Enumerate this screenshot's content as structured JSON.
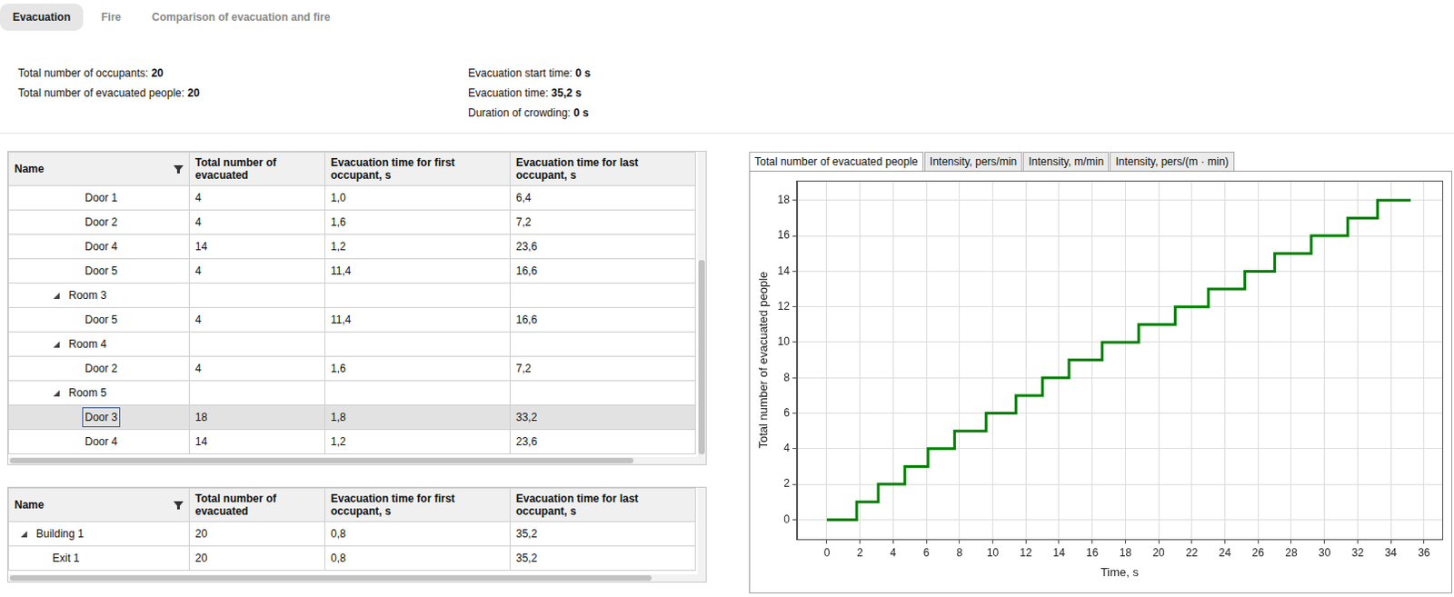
{
  "tabs": [
    "Evacuation",
    "Fire",
    "Comparison of evacuation and fire"
  ],
  "active_tab": "Evacuation",
  "summary_left": [
    {
      "label": "Total number of occupants:",
      "value": "20"
    },
    {
      "label": "Total number of evacuated people:",
      "value": "20"
    }
  ],
  "summary_right": [
    {
      "label": "Evacuation start time:",
      "value": "0 s"
    },
    {
      "label": "Evacuation time:",
      "value": "35,2 s"
    },
    {
      "label": "Duration of crowding:",
      "value": "0 s"
    }
  ],
  "rooms_table": {
    "columns": [
      "Name",
      "Total number of evacuated",
      "Evacuation time for first occupant, s",
      "Evacuation time for last occupant, s"
    ],
    "groups": [
      {
        "rows": [
          {
            "name": "Door 1",
            "values": [
              "4",
              "1,0",
              "6,4"
            ]
          },
          {
            "name": "Door 2",
            "values": [
              "4",
              "1,6",
              "7,2"
            ]
          },
          {
            "name": "Door 4",
            "values": [
              "14",
              "1,2",
              "23,6"
            ]
          },
          {
            "name": "Door 5",
            "values": [
              "4",
              "11,4",
              "16,6"
            ]
          }
        ]
      },
      {
        "name": "Room 3",
        "rows": [
          {
            "name": "Door 5",
            "values": [
              "4",
              "11,4",
              "16,6"
            ]
          }
        ]
      },
      {
        "name": "Room 4",
        "rows": [
          {
            "name": "Door 2",
            "values": [
              "4",
              "1,6",
              "7,2"
            ]
          }
        ]
      },
      {
        "name": "Room 5",
        "rows": [
          {
            "name": "Door 3",
            "values": [
              "18",
              "1,8",
              "33,2"
            ],
            "selected": true
          },
          {
            "name": "Door 4",
            "values": [
              "14",
              "1,2",
              "23,6"
            ]
          }
        ]
      }
    ]
  },
  "exits_table": {
    "columns": [
      "Name",
      "Total number of evacuated",
      "Evacuation time for first occupant, s",
      "Evacuation time for last occupant, s"
    ],
    "groups": [
      {
        "name": "Building 1",
        "values": [
          "20",
          "0,8",
          "35,2"
        ],
        "rows": [
          {
            "name": "Exit 1",
            "values": [
              "20",
              "0,8",
              "35,2"
            ]
          }
        ]
      }
    ]
  },
  "chart_tabs": [
    "Total number of evacuated people",
    "Intensity, pers/min",
    "Intensity, m/min",
    "Intensity, pers/(m · min)"
  ],
  "active_chart_tab": "Total number of evacuated people",
  "chart_data": {
    "type": "line",
    "x_label": "Time, s",
    "y_label": "Total number of evacuated people",
    "x": [
      0,
      1.8,
      3.1,
      4.7,
      6.1,
      7.7,
      9.6,
      11.4,
      13.0,
      14.6,
      16.6,
      18.8,
      21.0,
      23.0,
      25.2,
      27.0,
      29.2,
      31.4,
      33.2,
      35.2
    ],
    "values": [
      0,
      1,
      2,
      3,
      4,
      5,
      6,
      7,
      8,
      9,
      10,
      11,
      12,
      13,
      14,
      15,
      16,
      17,
      18,
      18
    ],
    "color": "#008000",
    "line_style": "steps",
    "xlim": [
      -1.8,
      37.1
    ],
    "xticks": [
      0,
      2,
      4,
      6,
      8,
      10,
      12,
      14,
      16,
      18,
      20,
      22,
      24,
      26,
      28,
      30,
      32,
      34,
      36
    ],
    "ylim": [
      -1.1,
      19.1
    ],
    "yticks": [
      0,
      2,
      4,
      6,
      8,
      10,
      12,
      14,
      16,
      18
    ],
    "grid": true
  }
}
